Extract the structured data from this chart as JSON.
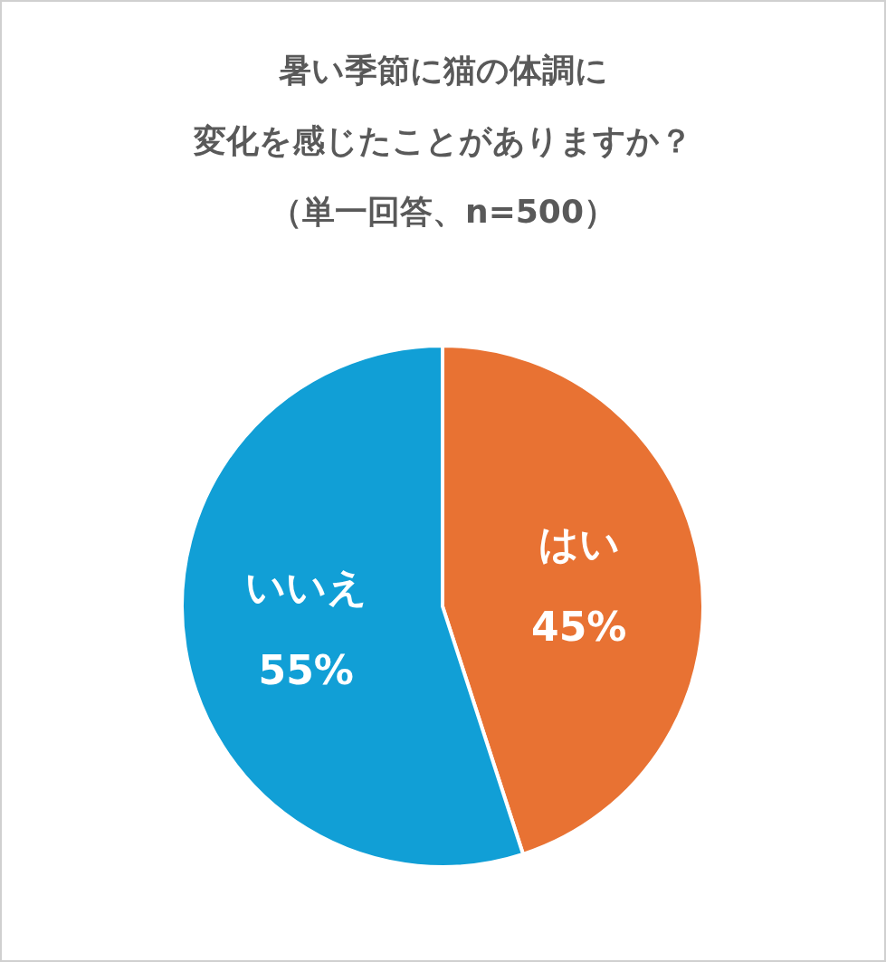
{
  "chart_data": {
    "type": "pie",
    "title": "暑い季節に猫の体調に",
    "subtitle": "変化を感じたことがありますか？",
    "annotations": [
      "（単一回答、n=500）"
    ],
    "categories": [
      "はい",
      "いいえ"
    ],
    "values": [
      45,
      55
    ],
    "value_labels": [
      "45%",
      "55%"
    ],
    "colors": [
      "#e87233",
      "#119fd6"
    ]
  }
}
